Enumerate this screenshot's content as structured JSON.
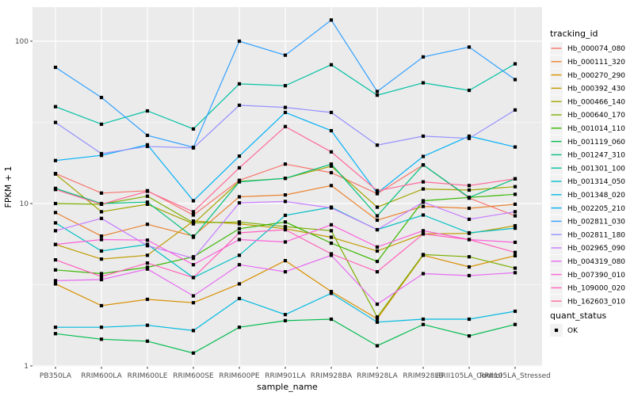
{
  "figure": {
    "kind": "ggplot-line-figure",
    "panel_bg": "#EBEBEB",
    "grid_color": "#FFFFFF",
    "tick_label_color": "#4D4D4D",
    "axis_title_color": "#000000",
    "marker_color": "#000000",
    "legend_key_bg": "#F2F2F2"
  },
  "chart_data": {
    "type": "line",
    "title": "",
    "xlabel": "sample_name",
    "ylabel": "FPKM + 1",
    "y_scale": "log10",
    "y_ticks": [
      1,
      10,
      100
    ],
    "y_minor_ticks": [
      3.1623,
      31.623
    ],
    "ylim": [
      1,
      160
    ],
    "grid": true,
    "marker": "black-square",
    "categories": [
      "PB350LA",
      "RRIM600LA",
      "RRIM600LE",
      "RRIM600SE",
      "RRIM600PE",
      "RRIM901LA",
      "RRIM928BA",
      "RRIM928LA",
      "RRIM928LB",
      "RRII105LA_Control",
      "RRII105LA_Stressed"
    ],
    "legend": {
      "title": "tracking_id",
      "position": "right"
    },
    "legend2": {
      "title": "quant_status",
      "items": [
        {
          "label": "OK",
          "marker": "black-square"
        }
      ]
    },
    "series": [
      {
        "name": "Hb_000074_080",
        "color": "#F8766D",
        "values": [
          15.3,
          11.6,
          12.0,
          8.5,
          13.9,
          17.5,
          15.5,
          11.5,
          17.3,
          10.8,
          8.4
        ]
      },
      {
        "name": "Hb_000111_320",
        "color": "#EA8331",
        "values": [
          8.8,
          6.3,
          7.45,
          6.3,
          11.0,
          11.3,
          12.9,
          7.9,
          9.6,
          9.35,
          9.9
        ]
      },
      {
        "name": "Hb_000270_290",
        "color": "#D89000",
        "values": [
          3.2,
          2.35,
          2.57,
          2.45,
          3.2,
          4.45,
          2.87,
          1.95,
          4.8,
          4.07,
          4.77
        ]
      },
      {
        "name": "Hb_000392_430",
        "color": "#C09B00",
        "values": [
          5.6,
          4.55,
          4.8,
          7.8,
          7.5,
          7.0,
          6.2,
          5.1,
          6.5,
          6.55,
          7.3
        ]
      },
      {
        "name": "Hb_000466_140",
        "color": "#A3A500",
        "values": [
          15.2,
          8.9,
          9.9,
          7.5,
          13.7,
          14.3,
          17.0,
          9.5,
          12.3,
          12.1,
          12.7
        ]
      },
      {
        "name": "Hb_000640_170",
        "color": "#7CAE00",
        "values": [
          10.0,
          9.9,
          11.1,
          7.6,
          7.7,
          7.2,
          6.8,
          2.0,
          4.85,
          4.7,
          4.0
        ]
      },
      {
        "name": "Hb_001014_110",
        "color": "#39B600",
        "values": [
          3.9,
          3.7,
          4.05,
          4.7,
          7.0,
          7.7,
          5.7,
          4.4,
          10.4,
          10.9,
          11.4
        ]
      },
      {
        "name": "Hb_001119_060",
        "color": "#00BB4E",
        "values": [
          1.58,
          1.46,
          1.42,
          1.2,
          1.73,
          1.9,
          1.94,
          1.33,
          1.8,
          1.53,
          1.8
        ]
      },
      {
        "name": "Hb_001247_310",
        "color": "#00BF7D",
        "values": [
          12.4,
          10.0,
          10.2,
          6.2,
          13.6,
          14.3,
          17.5,
          8.4,
          17.3,
          10.9,
          14.2
        ]
      },
      {
        "name": "Hb_001301_100",
        "color": "#00C1A3",
        "values": [
          39.5,
          30.8,
          37.2,
          28.8,
          54.6,
          53.2,
          71.6,
          46.5,
          55.4,
          49.8,
          72.5
        ]
      },
      {
        "name": "Hb_001314_050",
        "color": "#00BFC4",
        "values": [
          7.6,
          5.1,
          5.6,
          3.5,
          4.8,
          8.46,
          9.5,
          6.9,
          8.5,
          6.6,
          7.05
        ]
      },
      {
        "name": "Hb_001348_020",
        "color": "#00BAE0",
        "values": [
          1.73,
          1.73,
          1.78,
          1.65,
          2.6,
          2.07,
          2.8,
          1.86,
          1.94,
          1.94,
          2.17
        ]
      },
      {
        "name": "Hb_002205_210",
        "color": "#00B0F6",
        "values": [
          18.4,
          19.8,
          23.0,
          10.4,
          19.6,
          36.4,
          28.1,
          11.6,
          19.5,
          26.0,
          22.3
        ]
      },
      {
        "name": "Hb_002811_030",
        "color": "#35A2FF",
        "values": [
          69,
          45,
          26.3,
          22.2,
          100,
          82,
          135,
          49,
          80,
          92,
          58
        ]
      },
      {
        "name": "Hb_002811_180",
        "color": "#9590FF",
        "values": [
          31.6,
          20.3,
          22.5,
          22.0,
          40.3,
          39.1,
          36.4,
          22.9,
          26.0,
          25.2,
          37.7
        ]
      },
      {
        "name": "Hb_002965_090",
        "color": "#C77CFF",
        "values": [
          6.8,
          8.1,
          5.5,
          4.6,
          10.1,
          10.3,
          9.4,
          6.9,
          10.2,
          8.0,
          8.9
        ]
      },
      {
        "name": "Hb_004319_080",
        "color": "#E76BF3",
        "values": [
          3.35,
          3.4,
          3.95,
          2.7,
          4.2,
          3.8,
          4.8,
          2.4,
          3.7,
          3.6,
          3.75
        ]
      },
      {
        "name": "Hb_007390_010",
        "color": "#FA62DB",
        "values": [
          5.6,
          6.0,
          5.95,
          4.2,
          6.0,
          5.8,
          7.4,
          5.4,
          6.8,
          6.0,
          5.77
        ]
      },
      {
        "name": "Hb_109000_020",
        "color": "#FF62BC",
        "values": [
          4.5,
          3.55,
          4.3,
          3.5,
          6.6,
          6.9,
          4.9,
          3.8,
          6.5,
          6.0,
          5.0
        ]
      },
      {
        "name": "Hb_162603_010",
        "color": "#FF6A98",
        "values": [
          12.2,
          9.9,
          11.9,
          8.9,
          16.6,
          29.8,
          20.8,
          12.0,
          13.6,
          12.9,
          14.2
        ]
      }
    ]
  }
}
